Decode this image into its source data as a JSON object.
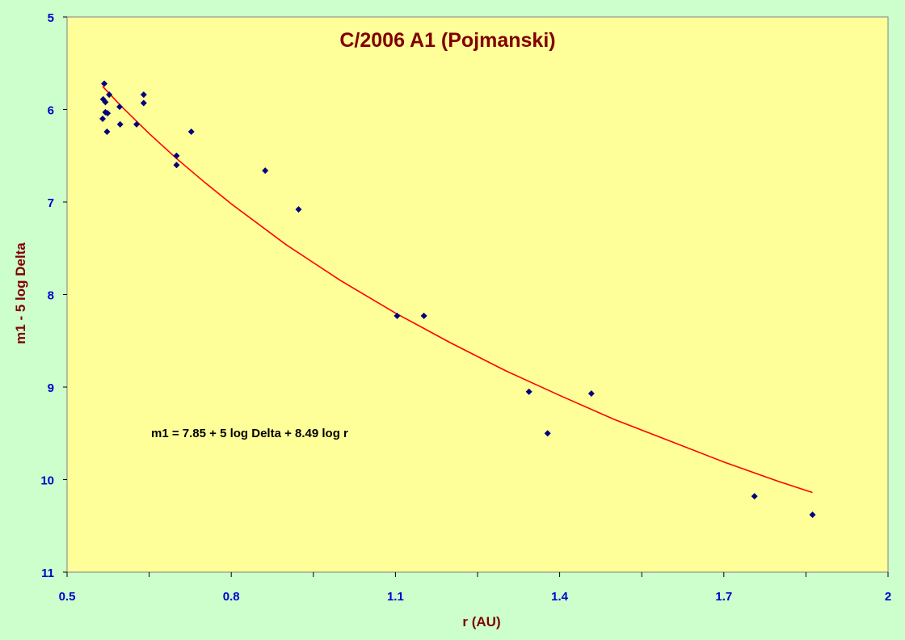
{
  "chart_data": {
    "type": "scatter",
    "title": "C/2006 A1 (Pojmanski)",
    "xlabel": "r (AU)",
    "ylabel": "m1 - 5 log Delta",
    "xlim": [
      0.5,
      2
    ],
    "ylim": [
      5,
      11
    ],
    "y_inverted": true,
    "x_ticks": [
      "0.5",
      "0.8",
      "1.1",
      "1.4",
      "1.7",
      "2"
    ],
    "y_ticks": [
      "5",
      "6",
      "7",
      "8",
      "9",
      "10",
      "11"
    ],
    "grid": false,
    "annotation": "m1 = 7.85 + 5 log Delta + 8.49 log r",
    "series": [
      {
        "kind": "points",
        "marker": "diamond",
        "color": "#000080",
        "points": [
          [
            0.568,
            5.72
          ],
          [
            0.566,
            5.89
          ],
          [
            0.57,
            5.92
          ],
          [
            0.565,
            6.1
          ],
          [
            0.57,
            6.03
          ],
          [
            0.574,
            6.04
          ],
          [
            0.573,
            6.24
          ],
          [
            0.577,
            5.84
          ],
          [
            0.596,
            5.97
          ],
          [
            0.597,
            6.16
          ],
          [
            0.627,
            6.16
          ],
          [
            0.64,
            5.84
          ],
          [
            0.64,
            5.93
          ],
          [
            0.7,
            6.5
          ],
          [
            0.7,
            6.6
          ],
          [
            0.727,
            6.24
          ],
          [
            0.862,
            6.66
          ],
          [
            0.923,
            7.08
          ],
          [
            1.103,
            8.23
          ],
          [
            1.152,
            8.23
          ],
          [
            1.344,
            9.05
          ],
          [
            1.378,
            9.5
          ],
          [
            1.458,
            9.07
          ],
          [
            1.756,
            10.18
          ],
          [
            1.862,
            10.38
          ]
        ]
      },
      {
        "kind": "fit",
        "color": "#ff0000",
        "x": [
          0.565,
          0.6,
          0.65,
          0.7,
          0.75,
          0.8,
          0.9,
          1.0,
          1.1,
          1.2,
          1.3,
          1.4,
          1.5,
          1.6,
          1.7,
          1.8,
          1.862
        ],
        "y": [
          5.75,
          5.97,
          6.26,
          6.53,
          6.78,
          7.02,
          7.46,
          7.85,
          8.2,
          8.52,
          8.82,
          9.09,
          9.35,
          9.58,
          9.81,
          10.02,
          10.14
        ]
      }
    ]
  }
}
